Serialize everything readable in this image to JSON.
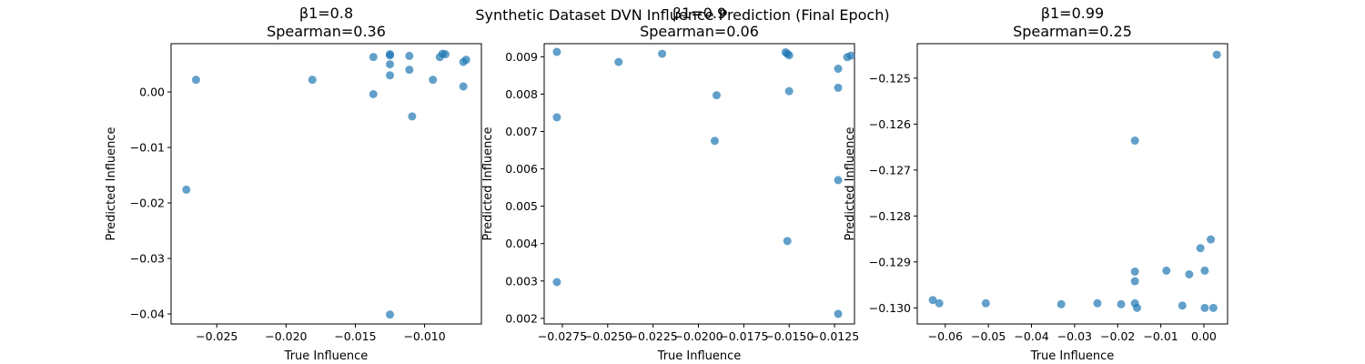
{
  "chart_data": {
    "suptitle": "Synthetic Dataset DVN Influence Prediction (Final Epoch)",
    "panels": [
      {
        "type": "scatter",
        "title_line1": "β1=0.8",
        "title_line2": "Spearman=0.36",
        "xlabel": "True Influence",
        "ylabel": "Predicted Influence",
        "xlim": [
          -0.0283,
          -0.0059
        ],
        "ylim": [
          -0.0418,
          0.0087
        ],
        "xticks": [
          -0.025,
          -0.02,
          -0.015,
          -0.01
        ],
        "xticklabels": [
          "−0.025",
          "−0.020",
          "−0.015",
          "−0.010"
        ],
        "yticks": [
          -0.04,
          -0.03,
          -0.02,
          -0.01,
          0.0
        ],
        "yticklabels": [
          "−0.04",
          "−0.03",
          "−0.02",
          "−0.01",
          "0.00"
        ],
        "points": [
          [
            -0.0265,
            0.0022
          ],
          [
            -0.0272,
            -0.0176
          ],
          [
            -0.0181,
            0.0022
          ],
          [
            -0.0137,
            0.0063
          ],
          [
            -0.0137,
            -0.0004
          ],
          [
            -0.0125,
            0.0068
          ],
          [
            -0.0125,
            0.0066
          ],
          [
            -0.0125,
            0.005
          ],
          [
            -0.0125,
            0.003
          ],
          [
            -0.0125,
            -0.0401
          ],
          [
            -0.0111,
            0.0065
          ],
          [
            -0.0111,
            0.004
          ],
          [
            -0.0109,
            -0.0044
          ],
          [
            -0.0094,
            0.0022
          ],
          [
            -0.0089,
            0.0063
          ],
          [
            -0.0087,
            0.0069
          ],
          [
            -0.0085,
            0.0068
          ],
          [
            -0.0072,
            0.0054
          ],
          [
            -0.0072,
            0.001
          ],
          [
            -0.007,
            0.0058
          ]
        ]
      },
      {
        "type": "scatter",
        "title_line1": "β1=0.9",
        "title_line2": "Spearman=0.06",
        "xlabel": "True Influence",
        "ylabel": "Predicted Influence",
        "xlim": [
          -0.0285,
          -0.0114
        ],
        "ylim": [
          0.00185,
          0.00935
        ],
        "xticks": [
          -0.0275,
          -0.025,
          -0.0225,
          -0.02,
          -0.0175,
          -0.015,
          -0.0125
        ],
        "xticklabels": [
          "−0.0275",
          "−0.0250",
          "−0.0225",
          "−0.0200",
          "−0.0175",
          "−0.0150",
          "−0.0125"
        ],
        "yticks": [
          0.002,
          0.003,
          0.004,
          0.005,
          0.006,
          0.007,
          0.008,
          0.009
        ],
        "yticklabels": [
          "0.002",
          "0.003",
          "0.004",
          "0.005",
          "0.006",
          "0.007",
          "0.008",
          "0.009"
        ],
        "points": [
          [
            -0.0278,
            0.00913
          ],
          [
            -0.0278,
            0.00738
          ],
          [
            -0.0278,
            0.00297
          ],
          [
            -0.0244,
            0.00886
          ],
          [
            -0.022,
            0.00908
          ],
          [
            -0.019,
            0.00797
          ],
          [
            -0.0191,
            0.00675
          ],
          [
            -0.0152,
            0.00912
          ],
          [
            -0.0151,
            0.00908
          ],
          [
            -0.015,
            0.00904
          ],
          [
            -0.015,
            0.00808
          ],
          [
            -0.0151,
            0.00407
          ],
          [
            -0.0123,
            0.00868
          ],
          [
            -0.0123,
            0.00817
          ],
          [
            -0.0123,
            0.0057
          ],
          [
            -0.0123,
            0.00212
          ],
          [
            -0.0118,
            0.00899
          ],
          [
            -0.0116,
            0.00903
          ]
        ]
      },
      {
        "type": "scatter",
        "title_line1": "β1=0.99",
        "title_line2": "Spearman=0.25",
        "xlabel": "True Influence",
        "ylabel": "Predicted Influence",
        "xlim": [
          -0.0665,
          0.0055
        ],
        "ylim": [
          -0.13035,
          -0.12425
        ],
        "xticks": [
          -0.06,
          -0.05,
          -0.04,
          -0.03,
          -0.02,
          -0.01,
          0.0
        ],
        "xticklabels": [
          "−0.06",
          "−0.05",
          "−0.04",
          "−0.03",
          "−0.02",
          "−0.01",
          "0.00"
        ],
        "yticks": [
          -0.13,
          -0.129,
          -0.128,
          -0.127,
          -0.126,
          -0.125
        ],
        "yticklabels": [
          "−0.130",
          "−0.129",
          "−0.128",
          "−0.127",
          "−0.126",
          "−0.125"
        ],
        "points": [
          [
            -0.0629,
            -0.12983
          ],
          [
            -0.0614,
            -0.1299
          ],
          [
            -0.0506,
            -0.1299
          ],
          [
            -0.0331,
            -0.12992
          ],
          [
            -0.0247,
            -0.1299
          ],
          [
            -0.0192,
            -0.12992
          ],
          [
            -0.016,
            -0.12636
          ],
          [
            -0.016,
            -0.12921
          ],
          [
            -0.016,
            -0.12942
          ],
          [
            -0.016,
            -0.1299
          ],
          [
            -0.0155,
            -0.13
          ],
          [
            -0.0087,
            -0.12919
          ],
          [
            -0.0034,
            -0.12927
          ],
          [
            -0.005,
            -0.12995
          ],
          [
            -0.0008,
            -0.1287
          ],
          [
            0.0002,
            -0.12919
          ],
          [
            0.0002,
            -0.13
          ],
          [
            0.0016,
            -0.12851
          ],
          [
            0.0022,
            -0.13
          ],
          [
            0.003,
            -0.12449
          ]
        ]
      }
    ]
  }
}
